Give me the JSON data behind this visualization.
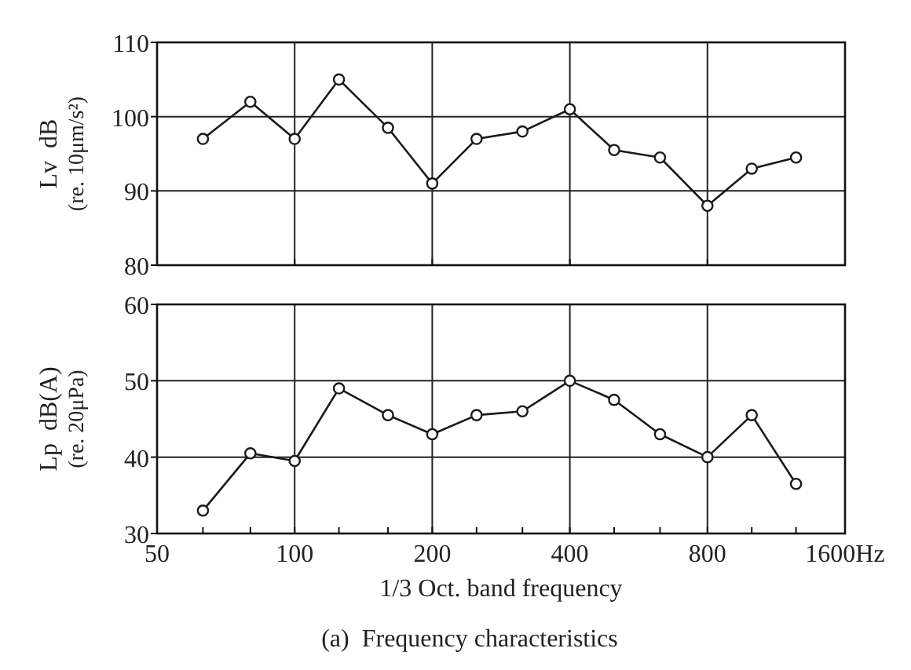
{
  "chart_data": [
    {
      "type": "line",
      "ylabel": "Lv  dB\n(re. 10μm/s²)",
      "log": "x",
      "xlim": [
        50,
        1600
      ],
      "xticks": [
        50,
        100,
        200,
        400,
        800,
        1600
      ],
      "ylim": [
        80,
        110
      ],
      "yticks": [
        80,
        90,
        100,
        110
      ],
      "grid": true,
      "marker": "circle",
      "tick_labels": "y",
      "series": [
        {
          "color": "#1a1a1a",
          "x": [
            63,
            80,
            100,
            125,
            160,
            200,
            250,
            315,
            400,
            500,
            630,
            800,
            1000,
            1250
          ],
          "values": [
            97,
            102,
            97,
            105,
            98.5,
            91,
            97,
            98,
            101,
            95.5,
            94.5,
            88,
            93,
            94.5
          ]
        }
      ]
    },
    {
      "type": "line",
      "ylabel": "Lp  dB(A)\n(re. 20μPa)",
      "xlabel": "1/3 Oct. band frequency",
      "annotations": [
        "(a)  Frequency characteristics"
      ],
      "log": "x",
      "xlim": [
        50,
        1600
      ],
      "xticks": [
        50,
        {
          "value": 63,
          "label": null
        },
        {
          "value": 80,
          "label": null
        },
        100,
        {
          "value": 125,
          "label": null
        },
        {
          "value": 160,
          "label": null
        },
        200,
        {
          "value": 250,
          "label": null
        },
        {
          "value": 315,
          "label": null
        },
        400,
        {
          "value": 500,
          "label": null
        },
        {
          "value": 630,
          "label": null
        },
        800,
        {
          "value": 1000,
          "label": null
        },
        {
          "value": 1250,
          "label": null
        },
        {
          "value": 1600,
          "label": "1600Hz"
        }
      ],
      "ylim": [
        30,
        60
      ],
      "yticks": [
        30,
        40,
        50,
        60
      ],
      "grid": true,
      "marker": "circle",
      "series": [
        {
          "color": "#1a1a1a",
          "x": [
            63,
            80,
            100,
            125,
            160,
            200,
            250,
            315,
            400,
            500,
            630,
            800,
            1000,
            1250
          ],
          "values": [
            33,
            40.5,
            39.5,
            49,
            45.5,
            43,
            45.5,
            46,
            50,
            47.5,
            43,
            40,
            45.5,
            36.5
          ]
        }
      ]
    }
  ]
}
